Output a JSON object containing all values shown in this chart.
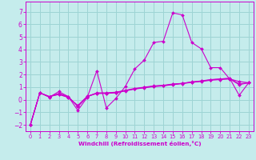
{
  "xlabel": "Windchill (Refroidissement éolien,°C)",
  "xlim": [
    -0.5,
    23.5
  ],
  "ylim": [
    -2.5,
    7.8
  ],
  "yticks": [
    -2,
    -1,
    0,
    1,
    2,
    3,
    4,
    5,
    6,
    7
  ],
  "xticks": [
    0,
    1,
    2,
    3,
    4,
    5,
    6,
    7,
    8,
    9,
    10,
    11,
    12,
    13,
    14,
    15,
    16,
    17,
    18,
    19,
    20,
    21,
    22,
    23
  ],
  "bg_color": "#c5ecec",
  "grid_color": "#9dd4d4",
  "line_color": "#cc00cc",
  "series1": {
    "x": [
      0,
      1,
      2,
      3,
      4,
      5,
      6,
      7,
      8,
      9,
      10,
      11,
      12,
      13,
      14,
      15,
      16,
      17,
      18,
      19,
      20,
      21,
      22,
      23
    ],
    "y": [
      -2.0,
      0.55,
      0.2,
      0.65,
      0.25,
      -0.85,
      0.2,
      2.3,
      -0.65,
      0.1,
      1.05,
      2.45,
      3.15,
      4.55,
      4.65,
      6.9,
      6.75,
      4.55,
      4.05,
      2.55,
      2.55,
      1.65,
      1.45,
      1.35
    ]
  },
  "series2": {
    "x": [
      0,
      1,
      2,
      3,
      4,
      5,
      6,
      7,
      8,
      9,
      10,
      11,
      12,
      13,
      14,
      15,
      16,
      17,
      18,
      19,
      20,
      21,
      22,
      23
    ],
    "y": [
      -2.0,
      0.55,
      0.25,
      0.5,
      0.25,
      -0.55,
      0.25,
      0.55,
      0.55,
      0.6,
      0.75,
      0.9,
      1.0,
      1.1,
      1.15,
      1.25,
      1.3,
      1.4,
      1.5,
      1.6,
      1.65,
      1.7,
      0.35,
      1.35
    ]
  },
  "series3": {
    "x": [
      0,
      1,
      2,
      3,
      4,
      5,
      6,
      7,
      8,
      9,
      10,
      11,
      12,
      13,
      14,
      15,
      16,
      17,
      18,
      19,
      20,
      21,
      22,
      23
    ],
    "y": [
      -2.0,
      0.55,
      0.25,
      0.45,
      0.2,
      -0.5,
      0.25,
      0.5,
      0.5,
      0.55,
      0.7,
      0.85,
      0.95,
      1.05,
      1.1,
      1.2,
      1.28,
      1.38,
      1.45,
      1.55,
      1.6,
      1.65,
      1.2,
      1.35
    ]
  },
  "series4": {
    "x": [
      0,
      1,
      2,
      3,
      4,
      5,
      6,
      7,
      8,
      9,
      10,
      11,
      12,
      13,
      14,
      15,
      16,
      17,
      18,
      19,
      20,
      21,
      22,
      23
    ],
    "y": [
      -2.0,
      0.55,
      0.25,
      0.42,
      0.18,
      -0.45,
      0.28,
      0.52,
      0.52,
      0.57,
      0.72,
      0.87,
      0.97,
      1.07,
      1.12,
      1.22,
      1.3,
      1.42,
      1.48,
      1.58,
      1.65,
      1.7,
      1.25,
      1.35
    ]
  }
}
